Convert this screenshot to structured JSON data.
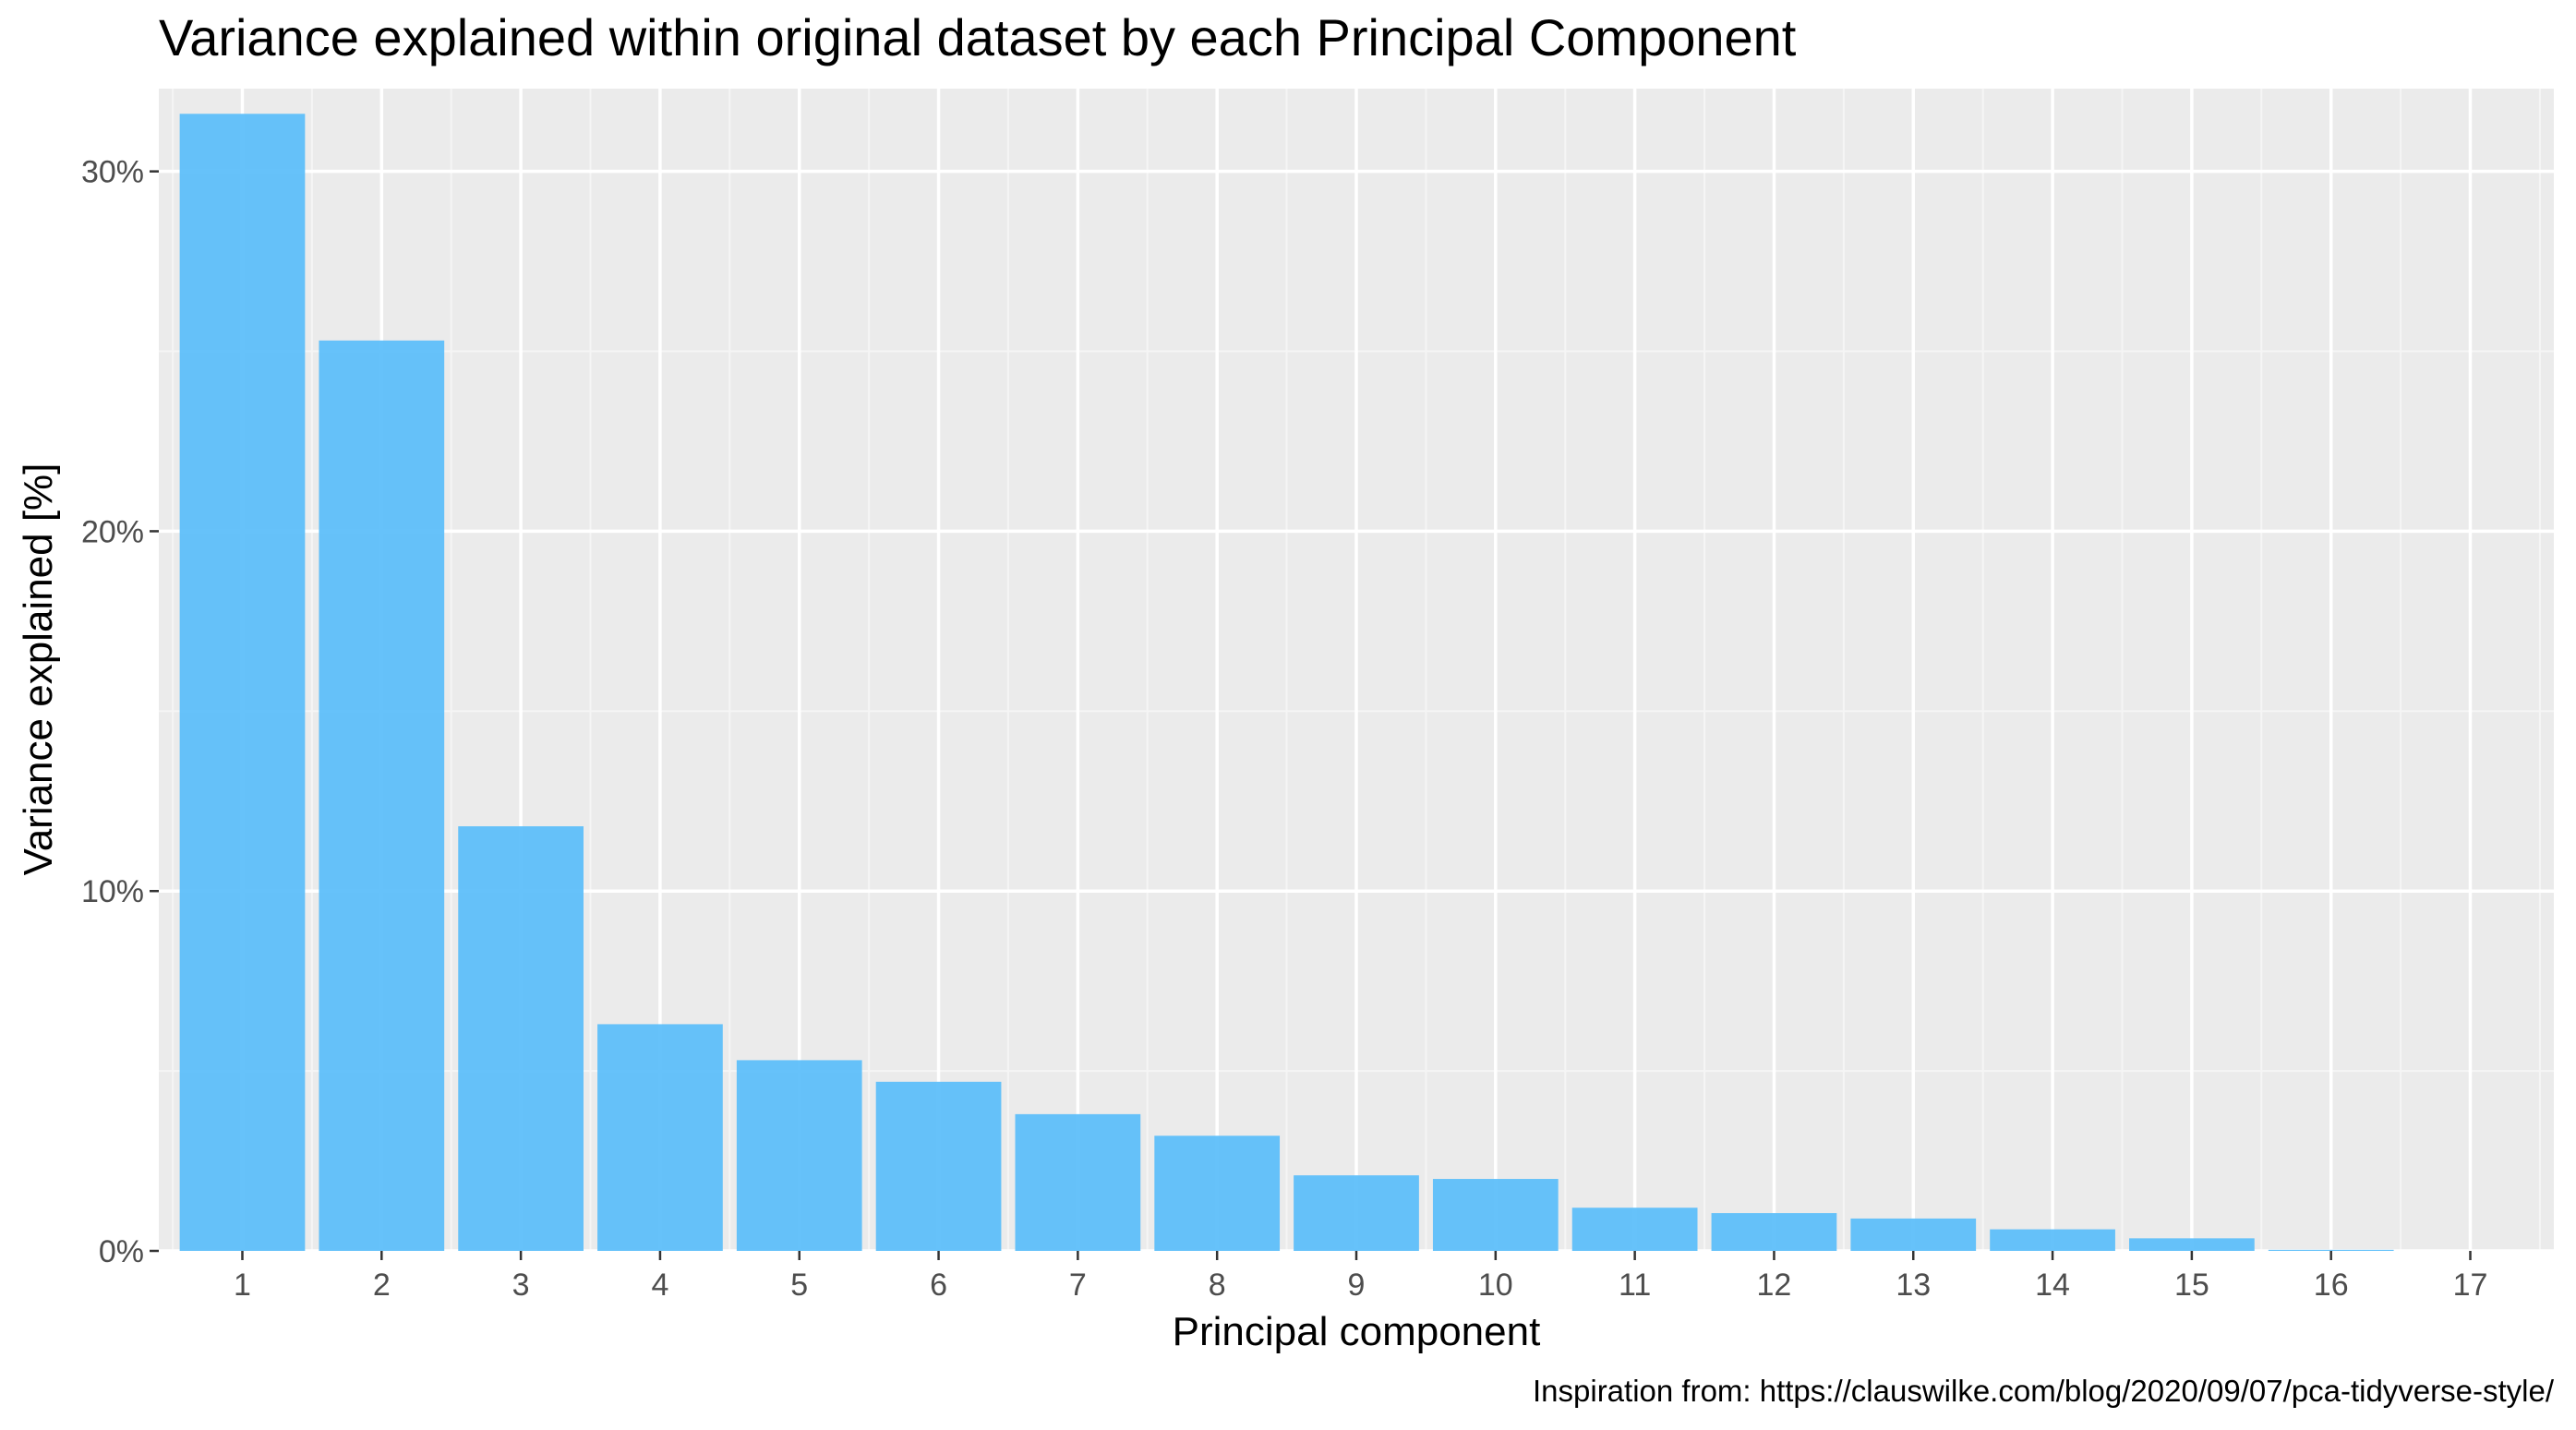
{
  "chart_data": {
    "type": "bar",
    "title": "Variance explained within original dataset by each Principal Component",
    "xlabel": "Principal component",
    "ylabel": "Variance explained [%]",
    "caption": "Inspiration from: https://clauswilke.com/blog/2020/09/07/pca-tidyverse-style/",
    "categories": [
      "1",
      "2",
      "3",
      "4",
      "5",
      "6",
      "7",
      "8",
      "9",
      "10",
      "11",
      "12",
      "13",
      "14",
      "15",
      "16",
      "17"
    ],
    "values": [
      31.6,
      25.3,
      11.8,
      6.3,
      5.3,
      4.7,
      3.8,
      3.2,
      2.1,
      2.0,
      1.2,
      1.05,
      0.9,
      0.6,
      0.35,
      0.03,
      0.0
    ],
    "value_unit": "%",
    "ylim": [
      0,
      32.3
    ],
    "xlim": [
      0.4,
      17.6
    ],
    "y_ticks": [
      0,
      10,
      20,
      30
    ],
    "y_tick_labels": [
      "0%",
      "10%",
      "20%",
      "30%"
    ],
    "grid": true,
    "legend": "none",
    "colors": {
      "bar": "#5EBFFA",
      "panel_background": "#EBEBEB",
      "grid_major": "#FFFFFF",
      "grid_minor": "#F5F5F5",
      "tick_text": "#4D4D4D",
      "text": "#000000"
    }
  }
}
